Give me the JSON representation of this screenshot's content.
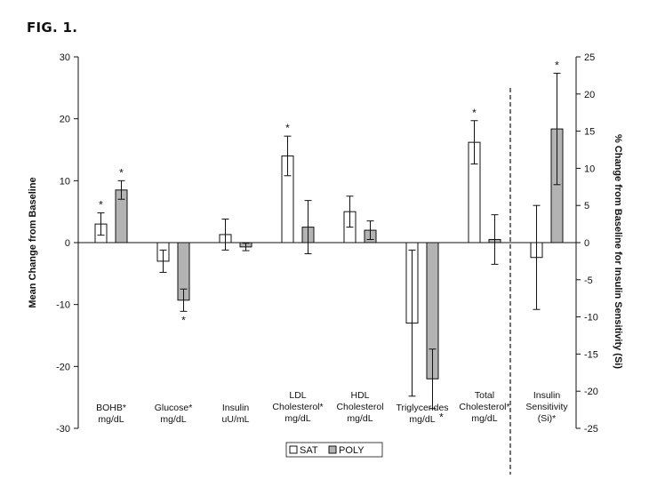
{
  "figure_label": "FIG. 1.",
  "chart_data": {
    "type": "bar",
    "ylabel_left": "Mean Change from Baseline",
    "ylabel_right": "% Change from Baseline for Insulin Sensitivity (Si)",
    "ylim_left": [
      -30,
      30
    ],
    "yticks_left": [
      30,
      20,
      10,
      0,
      -10,
      -20,
      -30
    ],
    "ylim_right": [
      -25,
      25
    ],
    "yticks_right": [
      25,
      20,
      15,
      10,
      5,
      0,
      -5,
      -10,
      -15,
      -20,
      -25
    ],
    "categories": [
      {
        "lines": [
          "BOHB*",
          "mg/dL"
        ]
      },
      {
        "lines": [
          "Glucose*",
          "mg/dL"
        ]
      },
      {
        "lines": [
          "Insulin",
          "uU/mL"
        ]
      },
      {
        "lines": [
          "LDL",
          "Cholesterol*",
          "mg/dL"
        ]
      },
      {
        "lines": [
          "HDL",
          "Cholesterol",
          "mg/dL"
        ]
      },
      {
        "lines": [
          "Triglycerides",
          "mg/dL"
        ]
      },
      {
        "lines": [
          "Total",
          "Cholesterol*",
          "mg/dL"
        ]
      },
      {
        "lines": [
          "Insulin",
          "Sensitivity",
          "(Si)*"
        ]
      }
    ],
    "series": [
      {
        "name": "SAT",
        "color": "#ffffff",
        "values": [
          3.0,
          -3.0,
          1.3,
          14.0,
          5.0,
          -13.0,
          16.2,
          -2.0
        ],
        "error": [
          1.8,
          1.8,
          2.5,
          3.2,
          2.5,
          11.8,
          3.5,
          7.0
        ],
        "star": [
          true,
          false,
          false,
          true,
          false,
          false,
          true,
          false
        ]
      },
      {
        "name": "POLY",
        "color": "#b3b3b3",
        "values": [
          8.5,
          -9.3,
          -0.7,
          2.5,
          2.0,
          -22.0,
          0.5,
          15.3
        ],
        "error": [
          1.5,
          1.8,
          0.6,
          4.3,
          1.5,
          4.8,
          4.0,
          7.5
        ],
        "star": [
          true,
          true,
          false,
          false,
          false,
          true,
          false,
          true
        ]
      }
    ],
    "right_axis_categories": [
      7
    ],
    "divider": "dashed line before Insulin Sensitivity",
    "legend": {
      "position": "bottom-center",
      "entries": [
        "SAT",
        "POLY"
      ]
    }
  }
}
